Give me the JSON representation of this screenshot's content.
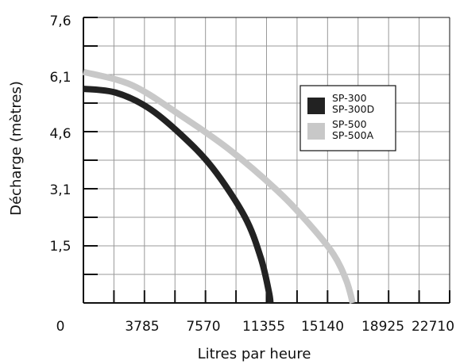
{
  "chart_data": {
    "type": "line",
    "title": "",
    "xlabel": "Litres par heure",
    "ylabel": "Décharge (mètres)",
    "xlim": [
      0,
      22710
    ],
    "ylim": [
      0,
      7.6
    ],
    "grid": true,
    "legend_position": "right",
    "x_ticks": [
      "0",
      "3785",
      "7570",
      "11355",
      "15140",
      "18925",
      "22710"
    ],
    "y_ticks": [
      "1,5",
      "3,1",
      "4,6",
      "6,1",
      "7,6"
    ],
    "series": [
      {
        "name_lines": [
          "SP-300",
          "SP-300D"
        ],
        "color": "#222222",
        "points": [
          [
            0,
            5.7
          ],
          [
            2000,
            5.6
          ],
          [
            4000,
            5.2
          ],
          [
            6000,
            4.5
          ],
          [
            8000,
            3.6
          ],
          [
            10000,
            2.3
          ],
          [
            11000,
            1.2
          ],
          [
            11500,
            0.3
          ],
          [
            11600,
            0
          ]
        ]
      },
      {
        "name_lines": [
          "SP-500",
          "SP-500A"
        ],
        "color": "#c8c8c8",
        "points": [
          [
            0,
            6.15
          ],
          [
            3000,
            5.8
          ],
          [
            6000,
            5.0
          ],
          [
            9000,
            4.1
          ],
          [
            12000,
            3.0
          ],
          [
            14000,
            2.1
          ],
          [
            15500,
            1.3
          ],
          [
            16300,
            0.6
          ],
          [
            16700,
            0
          ]
        ]
      }
    ]
  }
}
